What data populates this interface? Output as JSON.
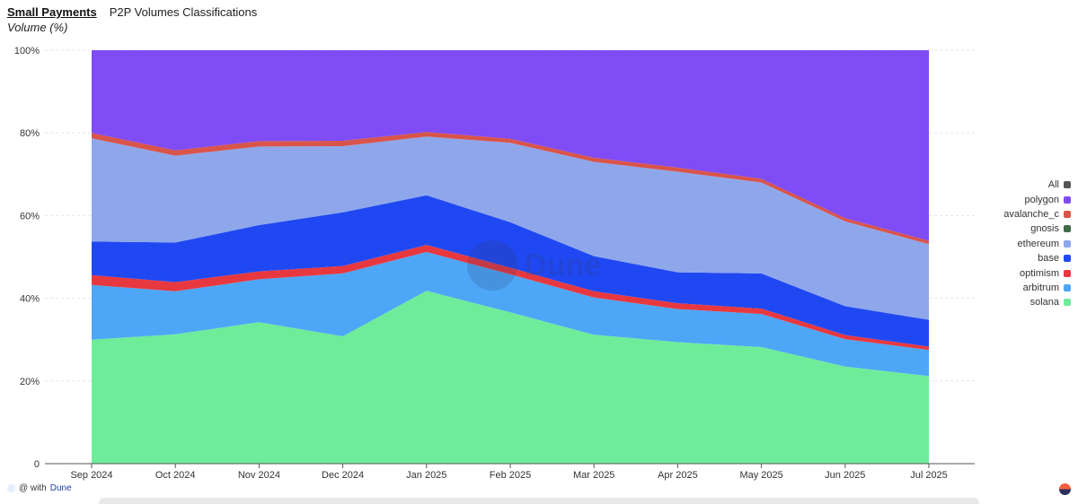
{
  "header": {
    "tab_label": "Small Payments",
    "title": "P2P Volumes Classifications"
  },
  "chart_data": {
    "type": "area",
    "stacked": true,
    "normalized": true,
    "ylabel": "Volume (%)",
    "ylim": [
      0,
      100
    ],
    "y_ticks": [
      "0",
      "20%",
      "40%",
      "60%",
      "80%",
      "100%"
    ],
    "categories": [
      "Sep 2024",
      "Oct 2024",
      "Nov 2024",
      "Dec 2024",
      "Jan 2025",
      "Feb 2025",
      "Mar 2025",
      "Apr 2025",
      "May 2025",
      "Jun 2025",
      "Jul 2025"
    ],
    "grid": true,
    "legend_position": "right",
    "series": [
      {
        "name": "solana",
        "color": "#6fec9a",
        "values": [
          30.0,
          31.3,
          34.2,
          30.8,
          41.8,
          36.6,
          31.2,
          29.4,
          28.2,
          23.5,
          21.2
        ]
      },
      {
        "name": "arbitrum",
        "color": "#4ea6f7",
        "values": [
          13.2,
          10.4,
          10.4,
          15.2,
          9.4,
          9.2,
          9.0,
          8.0,
          8.0,
          6.6,
          6.3
        ]
      },
      {
        "name": "optimism",
        "color": "#e8383f",
        "values": [
          2.4,
          2.2,
          1.9,
          1.8,
          1.7,
          1.6,
          1.5,
          1.4,
          1.3,
          1.0,
          0.8
        ]
      },
      {
        "name": "base",
        "color": "#2048f2",
        "values": [
          8.1,
          9.6,
          11.2,
          13.0,
          12.0,
          11.0,
          8.5,
          7.5,
          8.5,
          7.0,
          6.5
        ]
      },
      {
        "name": "ethereum",
        "color": "#8ea7eb",
        "values": [
          25.0,
          21.0,
          19.0,
          16.0,
          14.2,
          19.2,
          22.8,
          24.3,
          22.0,
          20.5,
          18.3
        ]
      },
      {
        "name": "gnosis",
        "color": "#3d6b4a",
        "values": [
          0,
          0,
          0,
          0,
          0,
          0,
          0,
          0,
          0,
          0,
          0
        ]
      },
      {
        "name": "avalanche_c",
        "color": "#d9544a",
        "values": [
          1.3,
          1.3,
          1.3,
          1.3,
          1.1,
          1.0,
          1.0,
          1.0,
          0.9,
          0.8,
          0.8
        ]
      },
      {
        "name": "polygon",
        "color": "#7f4cf6",
        "values": [
          20.0,
          24.2,
          22.0,
          21.9,
          19.8,
          21.4,
          26.0,
          28.4,
          31.1,
          40.6,
          46.1
        ]
      }
    ],
    "legend": [
      {
        "name": "All",
        "color": "#555555"
      },
      {
        "name": "polygon",
        "color": "#7f4cf6"
      },
      {
        "name": "avalanche_c",
        "color": "#d9544a"
      },
      {
        "name": "gnosis",
        "color": "#3d6b4a"
      },
      {
        "name": "ethereum",
        "color": "#8ea7eb"
      },
      {
        "name": "base",
        "color": "#2048f2"
      },
      {
        "name": "optimism",
        "color": "#e8383f"
      },
      {
        "name": "arbitrum",
        "color": "#4ea6f7"
      },
      {
        "name": "solana",
        "color": "#6fec9a"
      }
    ]
  },
  "watermark": "Dune",
  "footer": {
    "prefix": "@ with",
    "brand": "Dune"
  }
}
